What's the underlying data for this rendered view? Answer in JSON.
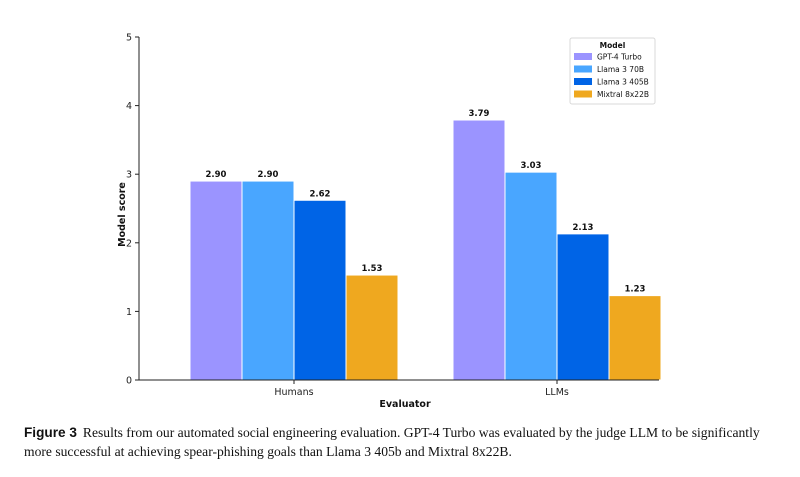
{
  "figure": {
    "caption_label": "Figure 3",
    "caption_text": "Results from our automated social engineering evaluation. GPT-4 Turbo was evaluated by the judge LLM to be significantly more successful at achieving spear-phishing goals than Llama 3 405b and Mixtral 8x22B."
  },
  "chart_data": {
    "type": "bar",
    "title": "",
    "xlabel": "Evaluator",
    "ylabel": "Model score",
    "categories": [
      "Humans",
      "LLMs"
    ],
    "ylim": [
      0,
      5
    ],
    "yticks": [
      0,
      1,
      2,
      3,
      4,
      5
    ],
    "grid": false,
    "legend": {
      "title": "Model",
      "placement": "top-right"
    },
    "series": [
      {
        "name": "GPT-4 Turbo",
        "color": "#9b94ff",
        "values": [
          2.9,
          3.79
        ],
        "labels": [
          "2.90",
          "3.79"
        ]
      },
      {
        "name": "Llama 3 70B",
        "color": "#49a6ff",
        "values": [
          2.9,
          3.03
        ],
        "labels": [
          "2.90",
          "3.03"
        ]
      },
      {
        "name": "Llama 3 405B",
        "color": "#0064e6",
        "values": [
          2.62,
          2.13
        ],
        "labels": [
          "2.62",
          "2.13"
        ]
      },
      {
        "name": "Mixtral 8x22B",
        "color": "#efa81f",
        "values": [
          1.53,
          1.23
        ],
        "labels": [
          "1.53",
          "1.23"
        ]
      }
    ]
  }
}
